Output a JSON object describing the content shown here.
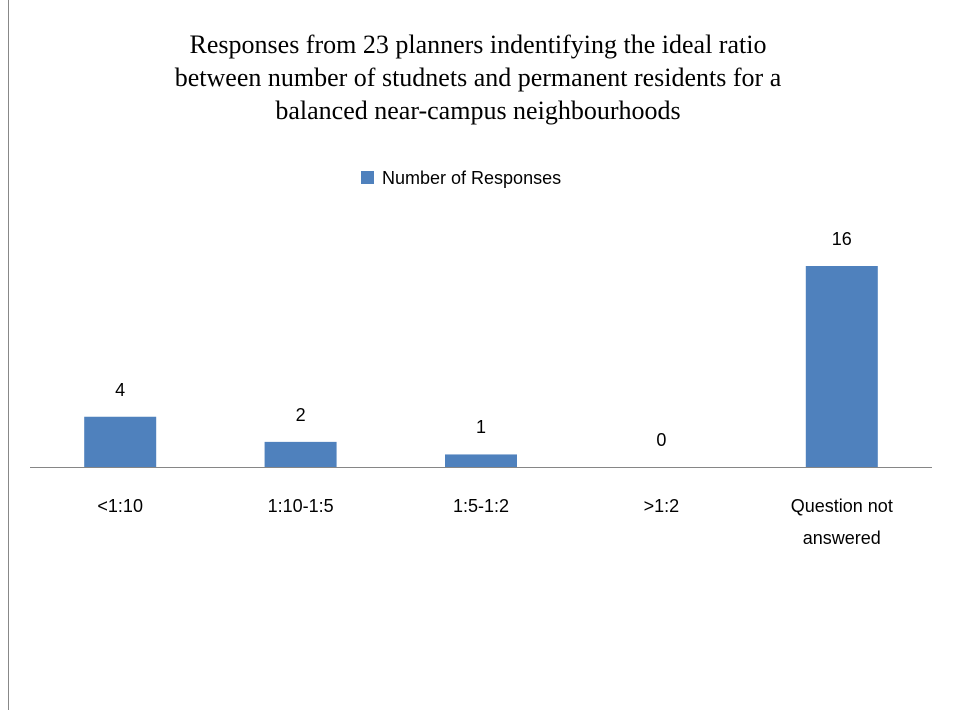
{
  "chart_data": {
    "type": "bar",
    "title": "Responses from 23 planners indentifying the ideal ratio\nbetween number of studnets and permanent residents for a\nbalanced near-campus neighbourhoods",
    "categories": [
      "<1:10",
      "1:10-1:5",
      "1:5-1:2",
      ">1:2",
      "Question not answered"
    ],
    "series": [
      {
        "name": "Number of Responses",
        "color": "#4f81bd",
        "values": [
          4,
          2,
          1,
          0,
          16
        ]
      }
    ],
    "legend": "top"
  }
}
